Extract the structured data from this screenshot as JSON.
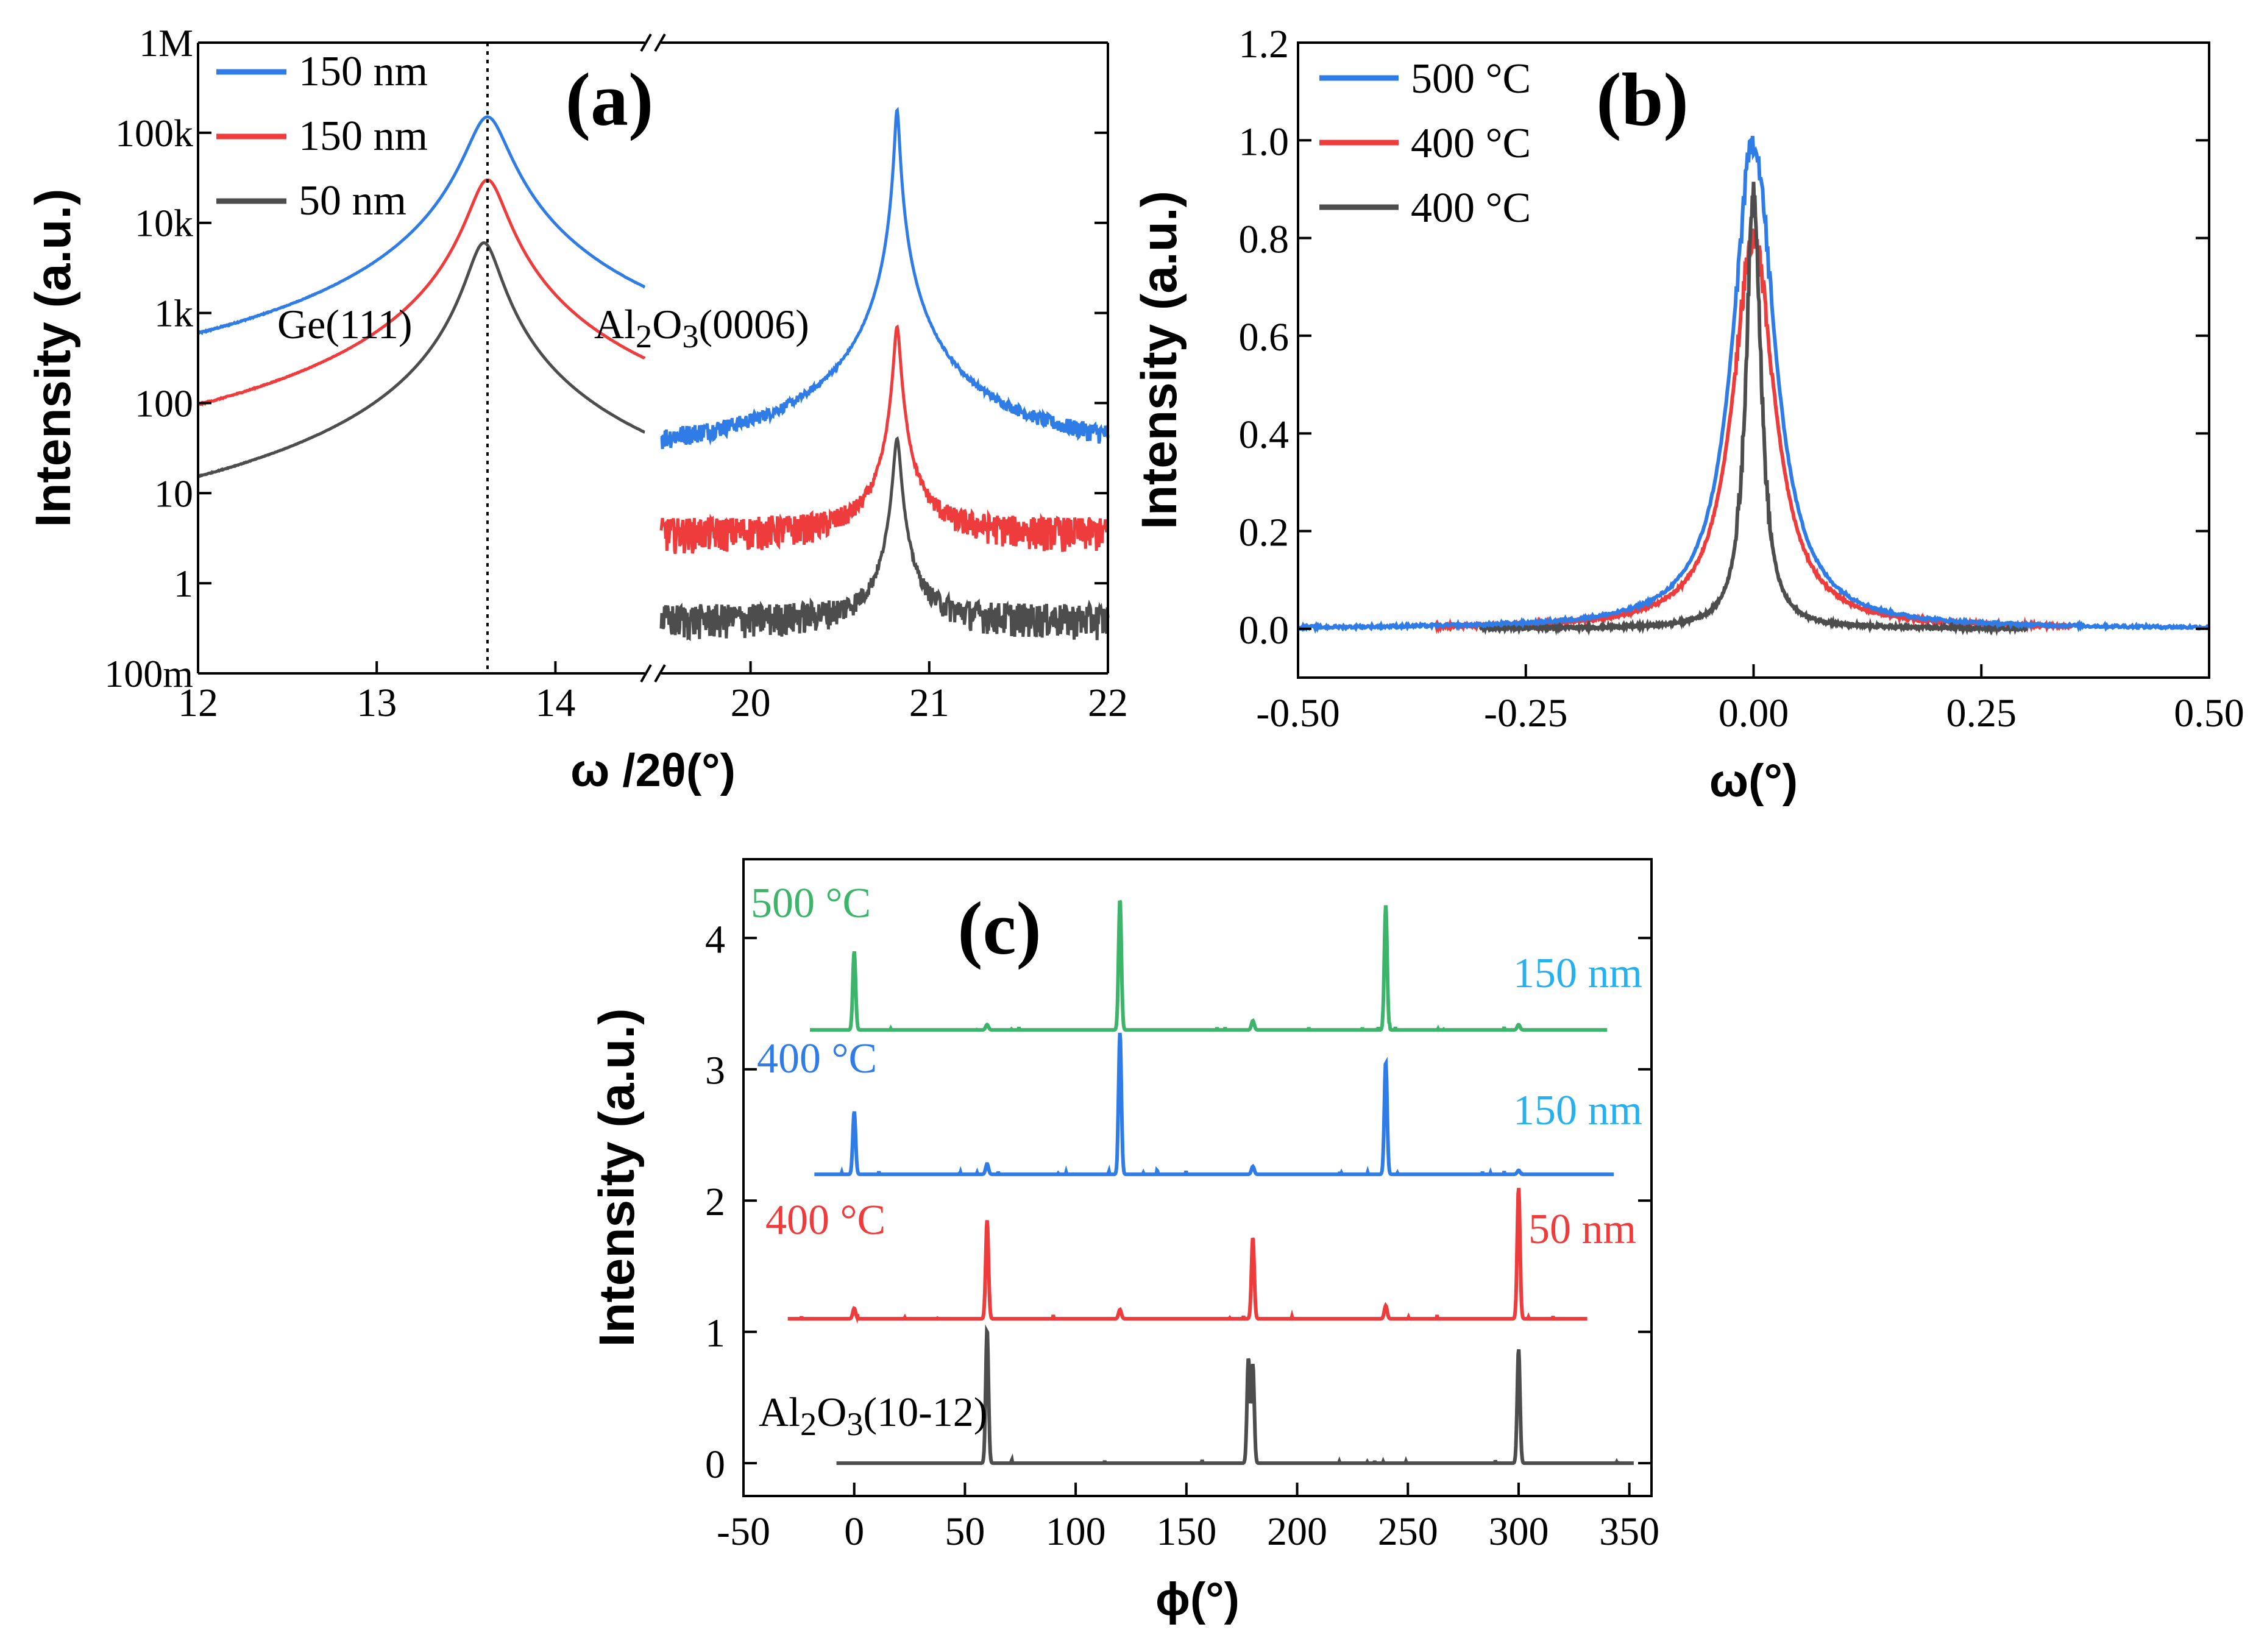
{
  "colors": {
    "blue": "#2f7ce6",
    "red": "#ee3b3b",
    "dark": "#4d4d4d",
    "green": "#3cb56a",
    "light_blue": "#26b0ee"
  },
  "chart_data": [
    {
      "panel_label": "(a)",
      "type": "line",
      "xlabel": "ω /2θ(°)",
      "ylabel": "Intensity (a.u.)",
      "yscale": "log",
      "ylim": [
        0.1,
        1000000
      ],
      "xlim_segments": [
        [
          12,
          14.5
        ],
        [
          19.5,
          22
        ]
      ],
      "axis_break": "between 14.5 and 19.5",
      "x_ticks": [
        "12",
        "13",
        "14",
        "20",
        "21",
        "22"
      ],
      "y_ticks": [
        "100m",
        "1",
        "10",
        "100",
        "1k",
        "10k",
        "100k",
        "1M"
      ],
      "grid": false,
      "legend_position": "top-left",
      "reference_line": {
        "x": 13.62,
        "style": "dotted"
      },
      "annotations": [
        {
          "text": "Ge(111)",
          "x": 13.05,
          "y": 1000
        },
        {
          "text_parts": [
            "Al",
            "2",
            "O",
            "3",
            "(0006)"
          ],
          "x": 20.2,
          "y": 1000
        }
      ],
      "series": [
        {
          "name": "150 nm",
          "color": "#2f7ce6",
          "baseline": 15,
          "peaks": [
            {
              "x": 13.62,
              "y": 150000,
              "width": 0.1
            },
            {
              "x": 20.82,
              "y": 180000,
              "width": 0.012
            }
          ]
        },
        {
          "name": "150 nm",
          "color": "#ee3b3b",
          "baseline": 2,
          "peaks": [
            {
              "x": 13.62,
              "y": 30000,
              "width": 0.09
            },
            {
              "x": 20.82,
              "y": 700,
              "width": 0.016
            }
          ]
        },
        {
          "name": "50 nm",
          "color": "#4d4d4d",
          "baseline": 0.22,
          "peaks": [
            {
              "x": 13.6,
              "y": 6000,
              "width": 0.08
            },
            {
              "x": 20.82,
              "y": 40,
              "width": 0.018
            }
          ]
        }
      ]
    },
    {
      "panel_label": "(b)",
      "type": "line",
      "xlabel": "ω(°)",
      "ylabel": "Intensity (a.u.)",
      "xlim": [
        -0.5,
        0.5
      ],
      "ylim": [
        -0.1,
        1.2
      ],
      "x_ticks": [
        "-0.50",
        "-0.25",
        "0.00",
        "0.25",
        "0.50"
      ],
      "y_ticks": [
        "0.0",
        "0.2",
        "0.4",
        "0.6",
        "0.8",
        "1.0",
        "1.2"
      ],
      "grid": false,
      "legend_position": "top-left",
      "series": [
        {
          "name": "500 °C",
          "color": "#2f7ce6",
          "peak_center": 0.0,
          "peak_height": 1.0,
          "half_width": 0.028,
          "x_range": [
            -0.5,
            0.5
          ]
        },
        {
          "name": "400 °C",
          "color": "#ee3b3b",
          "peak_center": 0.0,
          "peak_height": 0.8,
          "half_width": 0.028,
          "x_range": [
            -0.35,
            0.35
          ]
        },
        {
          "name": "400 °C",
          "color": "#4d4d4d",
          "peak_center": 0.0,
          "peak_height": 0.9,
          "half_width": 0.01,
          "x_range": [
            -0.3,
            0.3
          ]
        }
      ]
    },
    {
      "panel_label": "(c)",
      "type": "line",
      "xlabel": "ϕ(°)",
      "ylabel": "Intensity (a.u.)",
      "xlim": [
        -50,
        360
      ],
      "ylim": [
        -0.25,
        4.6
      ],
      "x_ticks": [
        "-50",
        "0",
        "50",
        "100",
        "150",
        "200",
        "250",
        "300",
        "350"
      ],
      "y_ticks": [
        "0",
        "1",
        "2",
        "3",
        "4"
      ],
      "grid": false,
      "series": [
        {
          "temp_label": "500 °C",
          "thickness_label": "150 nm",
          "color": "#3cb56a",
          "label_color": "#26b0ee",
          "offset": 3.3,
          "x_range": [
            -20,
            340
          ],
          "peaks": [
            {
              "x": 0,
              "h": 0.6
            },
            {
              "x": 60,
              "h": 0.04
            },
            {
              "x": 120,
              "h": 1.0
            },
            {
              "x": 180,
              "h": 0.07
            },
            {
              "x": 240,
              "h": 0.95
            },
            {
              "x": 300,
              "h": 0.04
            }
          ]
        },
        {
          "temp_label": "400 °C",
          "thickness_label": "150 nm",
          "color": "#2f7ce6",
          "label_color": "#26b0ee",
          "offset": 2.2,
          "x_range": [
            -18,
            343
          ],
          "peaks": [
            {
              "x": 0,
              "h": 0.48
            },
            {
              "x": 60,
              "h": 0.08
            },
            {
              "x": 120,
              "h": 1.08
            },
            {
              "x": 180,
              "h": 0.06
            },
            {
              "x": 240,
              "h": 0.86
            },
            {
              "x": 300,
              "h": 0.03
            }
          ]
        },
        {
          "temp_label": "400 °C",
          "thickness_label": "50 nm",
          "color": "#ee3b3b",
          "label_color": "#ee3b3b",
          "offset": 1.1,
          "x_range": [
            -30,
            331
          ],
          "peaks": [
            {
              "x": 0,
              "h": 0.08
            },
            {
              "x": 60,
              "h": 0.75
            },
            {
              "x": 120,
              "h": 0.07
            },
            {
              "x": 180,
              "h": 0.62
            },
            {
              "x": 240,
              "h": 0.1
            },
            {
              "x": 300,
              "h": 1.0
            }
          ]
        },
        {
          "temp_label": "",
          "thickness_label": "",
          "color": "#4d4d4d",
          "label_color": "#4d4d4d",
          "offset": 0,
          "x_range": [
            -8,
            352
          ],
          "peaks": [
            {
              "x": 60,
              "h": 1.02
            },
            {
              "x": 178,
              "h": 0.8
            },
            {
              "x": 180,
              "h": 0.75
            },
            {
              "x": 300,
              "h": 0.87
            }
          ]
        }
      ],
      "annotations": [
        {
          "text_parts": [
            "Al",
            "2",
            "O",
            "3",
            "(10-12)"
          ],
          "x": -12,
          "y": 0.25
        }
      ]
    }
  ]
}
